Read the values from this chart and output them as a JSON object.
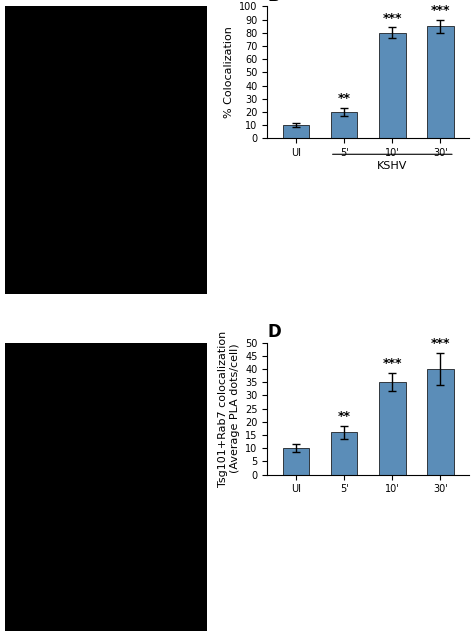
{
  "panel_B": {
    "categories": [
      "UI",
      "5'",
      "10'",
      "30'"
    ],
    "values": [
      10,
      20,
      80,
      85
    ],
    "errors": [
      1.5,
      3,
      4,
      5
    ],
    "ylabel": "% Colocalization",
    "ylim": [
      0,
      100
    ],
    "yticks": [
      0,
      10,
      20,
      30,
      40,
      50,
      60,
      70,
      80,
      90,
      100
    ],
    "bar_color": "#5B8DB8",
    "significance": [
      "",
      "**",
      "***",
      "***"
    ]
  },
  "panel_D": {
    "categories": [
      "UI",
      "5'",
      "10'",
      "30'"
    ],
    "values": [
      10,
      16,
      35,
      40
    ],
    "errors": [
      1.5,
      2.5,
      3.5,
      6
    ],
    "ylabel": "Tsg101+Rab7 colocalization\n(Average PLA dots/cell)",
    "ylim": [
      0,
      50
    ],
    "yticks": [
      0,
      5,
      10,
      15,
      20,
      25,
      30,
      35,
      40,
      45,
      50
    ],
    "bar_color": "#5B8DB8",
    "significance": [
      "",
      "**",
      "***",
      "***"
    ]
  },
  "label_fontsize": 8,
  "tick_fontsize": 7,
  "sig_fontsize": 9,
  "bar_width": 0.55
}
